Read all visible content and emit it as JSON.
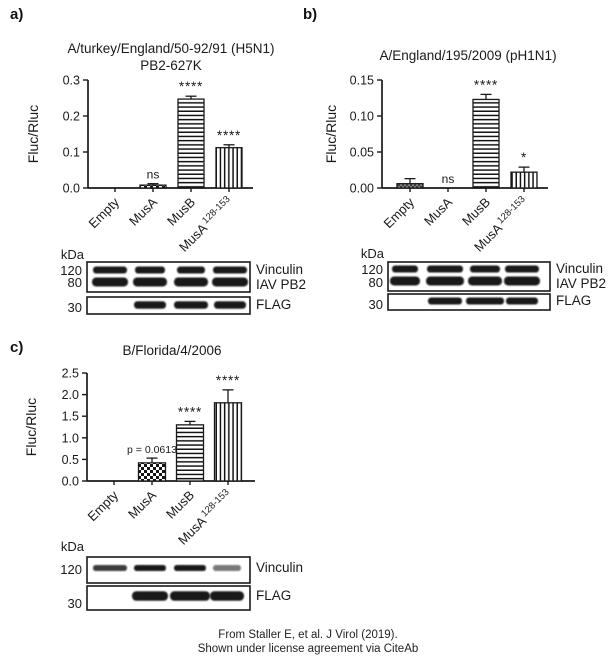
{
  "figure": {
    "caption_line1": "From Staller E, et al. J Virol (2019).",
    "caption_line2": "Shown under license agreement via CiteAb"
  },
  "colors": {
    "ink": "#1a1a1a",
    "band": "#101010",
    "background": "#ffffff"
  },
  "chart_data": [
    {
      "type": "bar",
      "title_lines": [
        "A/turkey/England/50-92/91 (H5N1)",
        "PB2-627K"
      ],
      "ylabel": "Fluc/Rluc",
      "ylim": [
        0,
        0.3
      ],
      "ytick_labels": [
        "0.0",
        "0.1",
        "0.2",
        "0.3"
      ],
      "categories": [
        {
          "text": "Empty"
        },
        {
          "text": "MusA"
        },
        {
          "text": "MusB"
        },
        {
          "text": "MusA",
          "sup": "128-153"
        }
      ],
      "values": [
        0.001,
        0.008,
        0.247,
        0.112
      ],
      "errors": [
        0,
        0.004,
        0.008,
        0.008
      ],
      "annotations": [
        "",
        "ns",
        "****",
        "****"
      ],
      "patterns": [
        "none",
        "checker",
        "hlines",
        "vlines"
      ],
      "grid": false,
      "legend": "none"
    },
    {
      "type": "bar",
      "title_lines": [
        "A/England/195/2009 (pH1N1)"
      ],
      "ylabel": "Fluc/Rluc",
      "ylim": [
        0,
        0.15
      ],
      "ytick_labels": [
        "0.00",
        "0.05",
        "0.10",
        "0.15"
      ],
      "categories": [
        {
          "text": "Empty"
        },
        {
          "text": "MusA"
        },
        {
          "text": "MusB"
        },
        {
          "text": "MusA",
          "sup": "128-153"
        }
      ],
      "values": [
        0.006,
        0.0003,
        0.123,
        0.022
      ],
      "errors": [
        0.007,
        0,
        0.007,
        0.007
      ],
      "annotations": [
        "",
        "ns",
        "****",
        "*"
      ],
      "patterns": [
        "darkdot",
        "none",
        "hlines",
        "vlines"
      ],
      "grid": false,
      "legend": "none"
    },
    {
      "type": "bar",
      "title_lines": [
        "B/Florida/4/2006"
      ],
      "ylabel": "Fluc/Rluc",
      "ylim": [
        0,
        2.5
      ],
      "ytick_labels": [
        "0.0",
        "0.5",
        "1.0",
        "1.5",
        "2.0",
        "2.5"
      ],
      "categories": [
        {
          "text": "Empty"
        },
        {
          "text": "MusA"
        },
        {
          "text": "MusB"
        },
        {
          "text": "MusA",
          "sup": "128-153"
        }
      ],
      "values": [
        0.012,
        0.42,
        1.3,
        1.81
      ],
      "errors": [
        0,
        0.11,
        0.08,
        0.3
      ],
      "annotations": [
        "",
        "p = 0.0613",
        "****",
        "****"
      ],
      "patterns": [
        "solid",
        "checker",
        "hlines",
        "vlines"
      ],
      "grid": false,
      "legend": "none"
    }
  ],
  "panels": [
    {
      "label": "a)",
      "blot": {
        "kda_label": "kDa",
        "membranes": [
          {
            "markers": [
              "120",
              "80"
            ],
            "labels": [
              "Vinculin",
              "IAV PB2"
            ],
            "bands": [
              [
                1,
                1,
                1,
                1
              ],
              [
                1,
                1,
                1,
                1
              ]
            ]
          },
          {
            "markers": [
              "30"
            ],
            "labels": [
              "FLAG"
            ],
            "bands": [
              [
                0,
                1,
                1,
                1
              ]
            ]
          }
        ]
      }
    },
    {
      "label": "b)",
      "blot": {
        "kda_label": "kDa",
        "membranes": [
          {
            "markers": [
              "120",
              "80"
            ],
            "labels": [
              "Vinculin",
              "IAV PB2"
            ],
            "bands": [
              [
                1,
                1,
                1,
                1
              ],
              [
                1,
                1,
                1,
                1
              ]
            ]
          },
          {
            "markers": [
              "30"
            ],
            "labels": [
              "FLAG"
            ],
            "bands": [
              [
                0,
                1,
                1,
                1
              ]
            ]
          }
        ]
      }
    },
    {
      "label": "c)",
      "blot": {
        "kda_label": "kDa",
        "membranes": [
          {
            "markers": [
              "120"
            ],
            "labels": [
              "Vinculin"
            ],
            "bands": [
              [
                1,
                1,
                1,
                1
              ]
            ]
          },
          {
            "markers": [
              "30"
            ],
            "labels": [
              "FLAG"
            ],
            "bands": [
              [
                0,
                1,
                1,
                1
              ]
            ]
          }
        ]
      }
    }
  ]
}
